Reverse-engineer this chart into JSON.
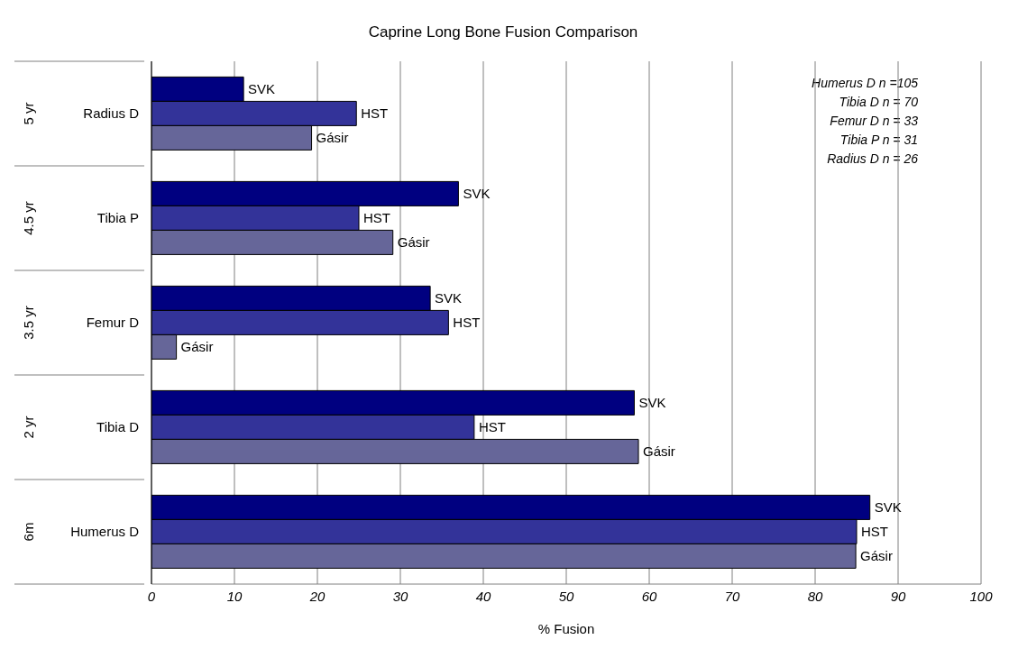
{
  "chart_data": {
    "type": "bar",
    "orientation": "horizontal",
    "title": "Caprine Long Bone Fusion Comparison",
    "xlabel": "% Fusion",
    "categories": [
      "Radius D",
      "Tibia P",
      "Femur D",
      "Tibia D",
      "Humerus D"
    ],
    "series": [
      {
        "name": "SVK",
        "color": "#000080",
        "values": [
          11.1,
          37.0,
          33.6,
          58.2,
          86.6
        ]
      },
      {
        "name": "HST",
        "color": "#333399",
        "values": [
          24.7,
          25.0,
          35.8,
          38.9,
          85.0
        ]
      },
      {
        "name": "Gásir",
        "color": "#666699",
        "values": [
          19.3,
          29.1,
          3.0,
          58.7,
          84.9
        ]
      }
    ],
    "xlim": [
      0,
      100
    ],
    "xticks": [
      0,
      10,
      20,
      30,
      40,
      50,
      60,
      70,
      80,
      90,
      100
    ],
    "grid": "x",
    "annotations": [
      "5 yr",
      "4.5 yr",
      "3.5 yr",
      "2 yr",
      "6m",
      "Humerus D n =105",
      "Tibia D n = 70",
      "Femur D n = 33",
      "Tibia P n = 31",
      "Radius D n = 26"
    ]
  }
}
